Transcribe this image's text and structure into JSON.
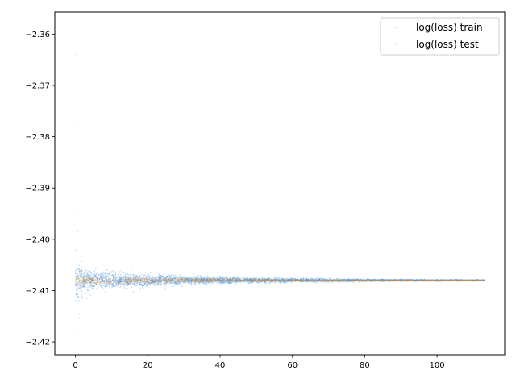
{
  "chart_data": {
    "type": "scatter",
    "title": "",
    "xlabel": "",
    "ylabel": "",
    "xlim": [
      -5.7,
      118.7
    ],
    "ylim": [
      -2.4225,
      -2.3557
    ],
    "x_ticks": [
      0,
      20,
      40,
      60,
      80,
      100
    ],
    "y_ticks": [
      -2.42,
      -2.41,
      -2.4,
      -2.39,
      -2.38,
      -2.37,
      -2.36
    ],
    "x_tick_labels": [
      "0",
      "20",
      "40",
      "60",
      "80",
      "100"
    ],
    "y_tick_labels": [
      "−2.42",
      "−2.41",
      "−2.40",
      "−2.39",
      "−2.38",
      "−2.37",
      "−2.36"
    ],
    "grid": false,
    "legend_position": "top-right",
    "series": [
      {
        "name": "log(loss) train",
        "color": "#1f77b4",
        "marker_color": "#3b8ee8",
        "x_range": [
          0,
          113
        ],
        "center": -2.408,
        "spread_near_start": 0.0012,
        "spread_at_end": 5e-05,
        "outliers": [
          [
            0.4,
            -2.3585
          ],
          [
            0.3,
            -2.364
          ],
          [
            0.5,
            -2.3775
          ],
          [
            0.6,
            -2.383
          ],
          [
            0.4,
            -2.388
          ],
          [
            0.5,
            -2.391
          ],
          [
            0.3,
            -2.395
          ],
          [
            0.6,
            -2.3985
          ],
          [
            0.4,
            -2.4195
          ],
          [
            0.5,
            -2.4175
          ],
          [
            1.1,
            -2.4145
          ]
        ]
      },
      {
        "name": "log(loss) test",
        "color": "#ff7f0e",
        "marker_color": "#e0902a",
        "x_range": [
          0,
          113
        ],
        "center": -2.408,
        "spread_near_start": 0.0006,
        "spread_at_end": 3e-05,
        "outliers": []
      }
    ]
  }
}
